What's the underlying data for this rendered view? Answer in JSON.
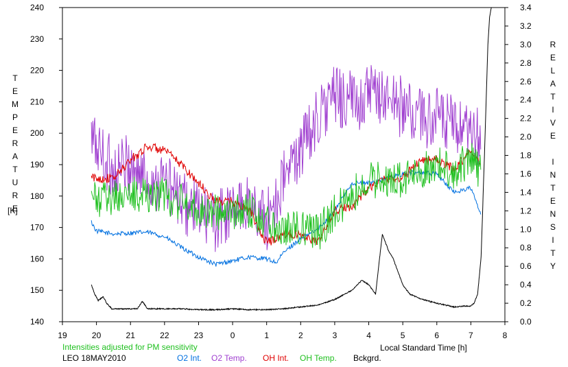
{
  "chart_data": {
    "type": "line",
    "xlabel": "Local Standard Time [h]",
    "left_axis": {
      "label": "TEMPERATURE",
      "unit": "[K]",
      "ylim": [
        140,
        240
      ],
      "ticks": [
        140,
        150,
        160,
        170,
        180,
        190,
        200,
        210,
        220,
        230,
        240
      ]
    },
    "right_axis": {
      "label": "RELATIVE INTENSITY",
      "ylim": [
        0.0,
        3.4
      ],
      "ticks": [
        "0.0",
        "0.2",
        "0.4",
        "0.6",
        "0.8",
        "1.0",
        "1.2",
        "1.4",
        "1.6",
        "1.8",
        "2.0",
        "2.2",
        "2.4",
        "2.6",
        "2.8",
        "3.0",
        "3.2",
        "3.4"
      ]
    },
    "x_ticks": [
      "19",
      "20",
      "21",
      "22",
      "23",
      "0",
      "1",
      "2",
      "3",
      "4",
      "5",
      "6",
      "7",
      "8"
    ],
    "xlim": [
      19,
      32
    ],
    "note": "Intensities adjusted for PM sensitivity",
    "site_date": "LEO 18MAY2010",
    "series": [
      {
        "name": "O2 Int.",
        "color": "#0070e0",
        "axis": "right",
        "x": [
          19.85,
          20.0,
          20.5,
          21.0,
          21.5,
          22.0,
          22.5,
          23.0,
          23.5,
          24.0,
          24.5,
          25.0,
          25.3,
          25.5,
          26.0,
          26.5,
          27.0,
          27.5,
          28.0,
          28.5,
          29.0,
          29.5,
          30.0,
          30.5,
          31.0,
          31.3
        ],
        "y": [
          1.08,
          0.98,
          0.95,
          0.96,
          0.97,
          0.92,
          0.8,
          0.7,
          0.62,
          0.66,
          0.7,
          0.68,
          0.64,
          0.75,
          0.9,
          1.0,
          1.2,
          1.5,
          1.5,
          1.55,
          1.6,
          1.62,
          1.6,
          1.4,
          1.45,
          1.15
        ]
      },
      {
        "name": "O2 Temp.",
        "color": "#a040d0",
        "axis": "left",
        "x": [
          19.85,
          20.0,
          20.5,
          21.0,
          21.5,
          22.0,
          22.5,
          23.0,
          23.5,
          24.0,
          24.5,
          25.0,
          25.5,
          26.0,
          26.5,
          27.0,
          27.5,
          28.0,
          28.5,
          29.0,
          29.5,
          30.0,
          30.5,
          31.0,
          31.3
        ],
        "y": [
          198,
          196,
          188,
          190,
          185,
          185,
          178,
          175,
          172,
          175,
          178,
          172,
          185,
          195,
          205,
          212,
          210,
          212,
          212,
          208,
          205,
          205,
          202,
          198,
          199
        ]
      },
      {
        "name": "OH Int.",
        "color": "#e00000",
        "axis": "right",
        "x": [
          19.85,
          20.0,
          20.5,
          21.0,
          21.5,
          22.0,
          22.5,
          23.0,
          23.5,
          24.0,
          24.5,
          25.0,
          25.5,
          26.0,
          26.5,
          27.0,
          27.5,
          28.0,
          28.5,
          29.0,
          29.5,
          30.0,
          30.5,
          31.0,
          31.3
        ],
        "y": [
          1.56,
          1.55,
          1.55,
          1.75,
          1.9,
          1.85,
          1.7,
          1.5,
          1.3,
          1.3,
          1.2,
          0.85,
          0.95,
          0.95,
          0.85,
          1.2,
          1.25,
          1.45,
          1.55,
          1.55,
          1.75,
          1.75,
          1.65,
          1.85,
          1.7
        ]
      },
      {
        "name": "OH Temp.",
        "color": "#20c020",
        "axis": "left",
        "x": [
          19.85,
          20.0,
          20.5,
          21.0,
          21.5,
          22.0,
          22.5,
          23.0,
          23.5,
          24.0,
          24.5,
          25.0,
          25.5,
          26.0,
          26.5,
          27.0,
          27.5,
          28.0,
          28.5,
          29.0,
          29.5,
          30.0,
          30.5,
          31.0,
          31.3
        ],
        "y": [
          180,
          178,
          180,
          180,
          181,
          180,
          178,
          176,
          175,
          174,
          176,
          172,
          170,
          170,
          168,
          175,
          180,
          185,
          185,
          185,
          188,
          190,
          188,
          192,
          187
        ]
      },
      {
        "name": "Bckgrd.",
        "color": "#000000",
        "axis": "right",
        "x": [
          19.85,
          19.95,
          20.05,
          20.2,
          20.3,
          20.45,
          20.8,
          21.2,
          21.35,
          21.5,
          22.0,
          22.5,
          23.0,
          23.5,
          24.0,
          24.5,
          25.0,
          25.5,
          26.0,
          26.5,
          27.0,
          27.5,
          27.8,
          28.0,
          28.2,
          28.4,
          28.6,
          28.7,
          28.9,
          29.0,
          29.2,
          29.5,
          30.0,
          30.5,
          30.8,
          31.0,
          31.1,
          31.2,
          31.3,
          31.4,
          31.5,
          31.55,
          31.6
        ],
        "y": [
          0.4,
          0.3,
          0.23,
          0.27,
          0.2,
          0.14,
          0.14,
          0.14,
          0.22,
          0.14,
          0.14,
          0.14,
          0.13,
          0.13,
          0.14,
          0.13,
          0.13,
          0.14,
          0.16,
          0.18,
          0.24,
          0.34,
          0.45,
          0.4,
          0.3,
          0.95,
          0.75,
          0.7,
          0.5,
          0.4,
          0.3,
          0.25,
          0.2,
          0.16,
          0.17,
          0.17,
          0.2,
          0.3,
          0.7,
          1.8,
          3.0,
          3.3,
          3.4
        ]
      }
    ]
  }
}
